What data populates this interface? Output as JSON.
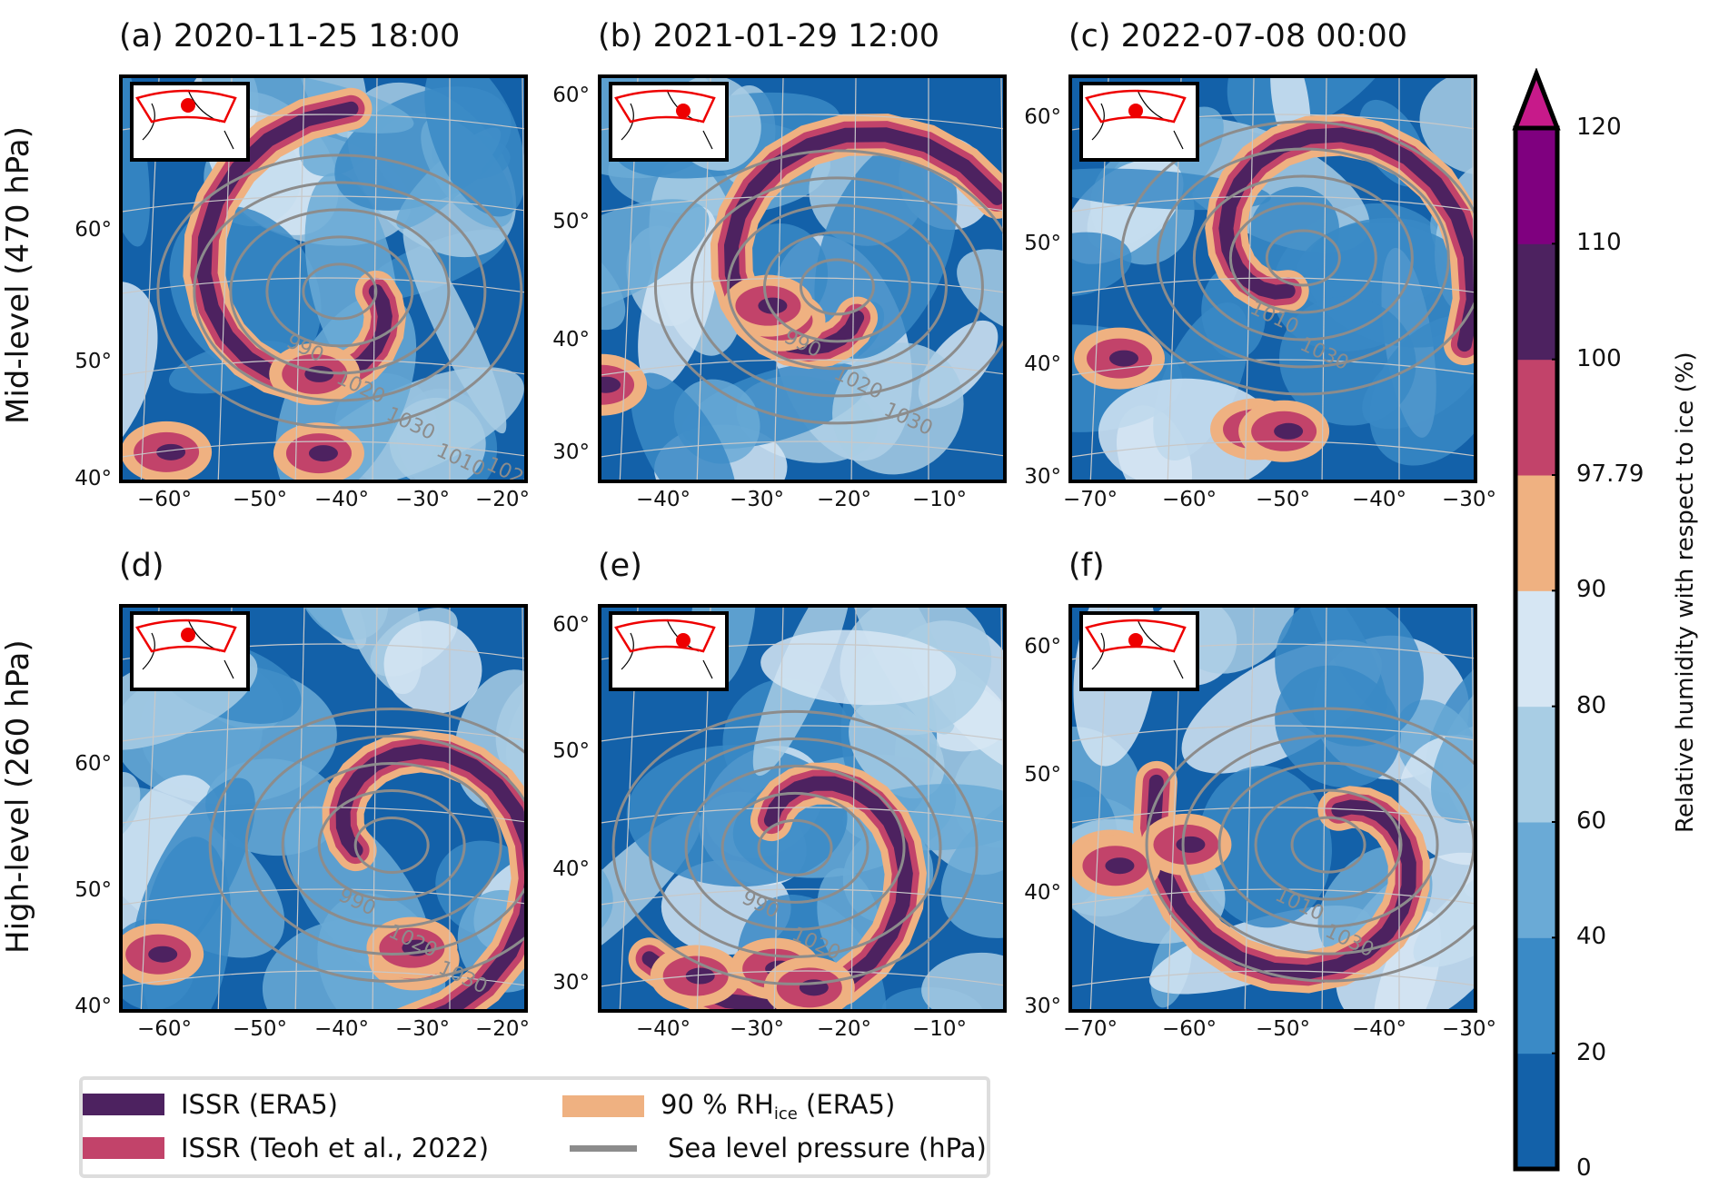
{
  "chart_data": {
    "type": "heatmap",
    "row_labels": [
      "Mid-level (470 hPa)",
      "High-level (260 hPa)"
    ],
    "panels": [
      {
        "title": "(a) 2020-11-25 18:00",
        "row": 0,
        "x_ticks": [
          "−60°",
          "−50°",
          "−40°",
          "−30°",
          "−20°"
        ],
        "y_ticks": [
          "60°",
          "50°",
          "40°"
        ],
        "contour_labels": [
          "990",
          "1020",
          "1030",
          "1010",
          "1020"
        ]
      },
      {
        "title": "(b) 2021-01-29 12:00",
        "row": 0,
        "x_ticks": [
          "−40°",
          "−30°",
          "−20°",
          "−10°"
        ],
        "y_ticks": [
          "60°",
          "50°",
          "40°",
          "30°"
        ],
        "contour_labels": [
          "990",
          "1020",
          "1030"
        ]
      },
      {
        "title": "(c) 2022-07-08 00:00",
        "row": 0,
        "x_ticks": [
          "−70°",
          "−60°",
          "−50°",
          "−40°",
          "−30°"
        ],
        "y_ticks": [
          "60°",
          "50°",
          "40°",
          "30°"
        ],
        "contour_labels": [
          "1010",
          "1030"
        ]
      },
      {
        "title": "(d)",
        "row": 1,
        "x_ticks": [
          "−60°",
          "−50°",
          "−40°",
          "−30°",
          "−20°"
        ],
        "y_ticks": [
          "60°",
          "50°",
          "40°"
        ],
        "contour_labels": [
          "990",
          "1020",
          "1030"
        ]
      },
      {
        "title": "(e)",
        "row": 1,
        "x_ticks": [
          "−40°",
          "−30°",
          "−20°",
          "−10°"
        ],
        "y_ticks": [
          "60°",
          "50°",
          "40°",
          "30°"
        ],
        "contour_labels": [
          "990",
          "1020"
        ]
      },
      {
        "title": "(f)",
        "row": 1,
        "x_ticks": [
          "−70°",
          "−60°",
          "−50°",
          "−40°",
          "−30°"
        ],
        "y_ticks": [
          "60°",
          "50°",
          "40°",
          "30°"
        ],
        "contour_labels": [
          "1010",
          "1030"
        ]
      }
    ],
    "colorbar": {
      "label": "Relative humidity with respect to ice (%)",
      "levels": [
        "0",
        "20",
        "40",
        "60",
        "80",
        "90",
        "97.79",
        "100",
        "110",
        "120"
      ],
      "colors": [
        "#1361a9",
        "#3a8ac6",
        "#6aaad6",
        "#a8cde4",
        "#d6e6f3",
        "#efb181",
        "#c2436a",
        "#4d2260",
        "#7f007f"
      ],
      "extend_color": "#c71a8a",
      "extend": "max"
    },
    "legend": [
      {
        "label": "ISSR (ERA5)",
        "color": "#4d2260",
        "kind": "patch"
      },
      {
        "label": "ISSR (Teoh et al., 2022)",
        "color": "#c2436a",
        "kind": "patch"
      },
      {
        "label_main": "90 % RH",
        "label_sub": "ice",
        "label_tail": " (ERA5)",
        "color": "#efb181",
        "kind": "patch"
      },
      {
        "label": "Sea level pressure (hPa)",
        "color": "#8c8c8c",
        "kind": "line"
      }
    ]
  }
}
